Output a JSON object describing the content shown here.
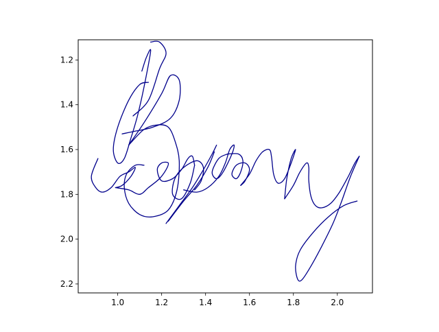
{
  "chart_data": {
    "type": "line",
    "title": "",
    "xlabel": "",
    "ylabel": "",
    "xlim": [
      0.82,
      2.16
    ],
    "ylim": [
      2.24,
      1.11
    ],
    "y_inverted": true,
    "grid": false,
    "legend": "none",
    "line_color": "#00008b",
    "x_ticks": [
      1.0,
      1.2,
      1.4,
      1.6,
      1.8,
      2.0
    ],
    "x_tick_labels": [
      "1.0",
      "1.2",
      "1.4",
      "1.6",
      "1.8",
      "2.0"
    ],
    "y_ticks": [
      1.2,
      1.4,
      1.6,
      1.8,
      2.0,
      2.2
    ],
    "y_tick_labels": [
      "1.2",
      "1.4",
      "1.6",
      "1.8",
      "2.0",
      "2.2"
    ],
    "series": [
      {
        "points": [
          [
            1.11,
            1.25
          ],
          [
            1.13,
            1.19
          ],
          [
            1.15,
            1.16
          ],
          [
            1.12,
            1.32
          ],
          [
            1.09,
            1.45
          ],
          [
            1.06,
            1.55
          ],
          [
            1.03,
            1.64
          ],
          [
            1.0,
            1.66
          ],
          [
            0.98,
            1.6
          ],
          [
            1.0,
            1.5
          ],
          [
            1.05,
            1.38
          ],
          [
            1.1,
            1.31
          ],
          [
            1.14,
            1.3
          ]
        ]
      },
      {
        "points": [
          [
            1.07,
            1.45
          ],
          [
            1.14,
            1.38
          ],
          [
            1.19,
            1.24
          ],
          [
            1.22,
            1.17
          ],
          [
            1.19,
            1.12
          ],
          [
            1.15,
            1.12
          ]
        ]
      },
      {
        "points": [
          [
            1.05,
            1.58
          ],
          [
            1.12,
            1.48
          ],
          [
            1.2,
            1.35
          ],
          [
            1.24,
            1.27
          ],
          [
            1.28,
            1.29
          ],
          [
            1.28,
            1.38
          ],
          [
            1.24,
            1.46
          ],
          [
            1.16,
            1.5
          ],
          [
            1.07,
            1.52
          ],
          [
            1.02,
            1.53
          ]
        ]
      },
      {
        "points": [
          [
            1.05,
            1.58
          ],
          [
            1.12,
            1.51
          ],
          [
            1.18,
            1.49
          ],
          [
            1.23,
            1.5
          ],
          [
            1.26,
            1.56
          ],
          [
            1.28,
            1.65
          ],
          [
            1.27,
            1.78
          ],
          [
            1.23,
            1.87
          ],
          [
            1.16,
            1.9
          ],
          [
            1.1,
            1.89
          ],
          [
            1.05,
            1.84
          ],
          [
            1.03,
            1.77
          ],
          [
            1.04,
            1.71
          ],
          [
            1.08,
            1.67
          ],
          [
            1.12,
            1.67
          ]
        ]
      },
      {
        "points": [
          [
            0.91,
            1.64
          ],
          [
            0.88,
            1.72
          ],
          [
            0.9,
            1.77
          ],
          [
            0.93,
            1.79
          ],
          [
            0.97,
            1.77
          ],
          [
            1.01,
            1.72
          ],
          [
            1.05,
            1.7
          ],
          [
            1.08,
            1.68
          ],
          [
            1.06,
            1.72
          ],
          [
            1.02,
            1.76
          ],
          [
            0.99,
            1.77
          ]
        ]
      },
      {
        "points": [
          [
            0.99,
            1.77
          ],
          [
            1.05,
            1.78
          ],
          [
            1.1,
            1.8
          ],
          [
            1.14,
            1.77
          ],
          [
            1.19,
            1.73
          ],
          [
            1.22,
            1.69
          ],
          [
            1.23,
            1.66
          ],
          [
            1.2,
            1.66
          ],
          [
            1.18,
            1.69
          ],
          [
            1.2,
            1.74
          ],
          [
            1.25,
            1.73
          ],
          [
            1.29,
            1.69
          ],
          [
            1.32,
            1.64
          ],
          [
            1.34,
            1.63
          ],
          [
            1.35,
            1.67
          ]
        ]
      },
      {
        "points": [
          [
            1.35,
            1.67
          ],
          [
            1.33,
            1.75
          ],
          [
            1.29,
            1.82
          ],
          [
            1.25,
            1.8
          ],
          [
            1.26,
            1.73
          ],
          [
            1.3,
            1.68
          ],
          [
            1.36,
            1.65
          ],
          [
            1.39,
            1.68
          ],
          [
            1.38,
            1.74
          ],
          [
            1.35,
            1.78
          ]
        ]
      },
      {
        "points": [
          [
            1.22,
            1.93
          ],
          [
            1.28,
            1.85
          ],
          [
            1.34,
            1.77
          ],
          [
            1.39,
            1.69
          ],
          [
            1.43,
            1.62
          ],
          [
            1.45,
            1.58
          ]
        ]
      },
      {
        "points": [
          [
            1.23,
            1.92
          ],
          [
            1.3,
            1.83
          ],
          [
            1.36,
            1.76
          ],
          [
            1.41,
            1.68
          ],
          [
            1.44,
            1.61
          ]
        ]
      },
      {
        "points": [
          [
            1.3,
            1.78
          ],
          [
            1.36,
            1.79
          ],
          [
            1.41,
            1.77
          ],
          [
            1.46,
            1.72
          ],
          [
            1.49,
            1.66
          ],
          [
            1.51,
            1.6
          ],
          [
            1.53,
            1.58
          ],
          [
            1.52,
            1.62
          ],
          [
            1.48,
            1.7
          ],
          [
            1.45,
            1.73
          ],
          [
            1.43,
            1.7
          ],
          [
            1.46,
            1.64
          ],
          [
            1.5,
            1.62
          ]
        ]
      },
      {
        "points": [
          [
            1.5,
            1.62
          ],
          [
            1.55,
            1.62
          ],
          [
            1.57,
            1.65
          ],
          [
            1.56,
            1.7
          ],
          [
            1.54,
            1.73
          ],
          [
            1.52,
            1.71
          ],
          [
            1.54,
            1.67
          ],
          [
            1.58,
            1.66
          ],
          [
            1.6,
            1.69
          ],
          [
            1.58,
            1.74
          ],
          [
            1.56,
            1.76
          ]
        ]
      },
      {
        "points": [
          [
            1.56,
            1.76
          ],
          [
            1.6,
            1.71
          ],
          [
            1.63,
            1.65
          ],
          [
            1.66,
            1.61
          ],
          [
            1.69,
            1.6
          ],
          [
            1.7,
            1.63
          ],
          [
            1.71,
            1.71
          ],
          [
            1.73,
            1.75
          ],
          [
            1.76,
            1.73
          ],
          [
            1.79,
            1.66
          ],
          [
            1.81,
            1.6
          ],
          [
            1.79,
            1.64
          ],
          [
            1.77,
            1.73
          ],
          [
            1.76,
            1.82
          ]
        ]
      },
      {
        "points": [
          [
            1.76,
            1.82
          ],
          [
            1.8,
            1.76
          ],
          [
            1.83,
            1.7
          ],
          [
            1.86,
            1.66
          ],
          [
            1.87,
            1.68
          ],
          [
            1.87,
            1.74
          ],
          [
            1.88,
            1.81
          ],
          [
            1.9,
            1.85
          ],
          [
            1.93,
            1.86
          ],
          [
            1.97,
            1.84
          ],
          [
            2.01,
            1.79
          ],
          [
            2.05,
            1.72
          ],
          [
            2.08,
            1.66
          ],
          [
            2.1,
            1.63
          ]
        ]
      },
      {
        "points": [
          [
            2.1,
            1.63
          ],
          [
            2.06,
            1.72
          ],
          [
            2.02,
            1.83
          ],
          [
            1.98,
            1.93
          ],
          [
            1.93,
            2.03
          ],
          [
            1.88,
            2.12
          ],
          [
            1.84,
            2.18
          ],
          [
            1.82,
            2.18
          ],
          [
            1.81,
            2.12
          ],
          [
            1.83,
            2.05
          ],
          [
            1.89,
            1.97
          ],
          [
            1.96,
            1.9
          ],
          [
            2.03,
            1.85
          ],
          [
            2.09,
            1.83
          ]
        ]
      }
    ]
  }
}
